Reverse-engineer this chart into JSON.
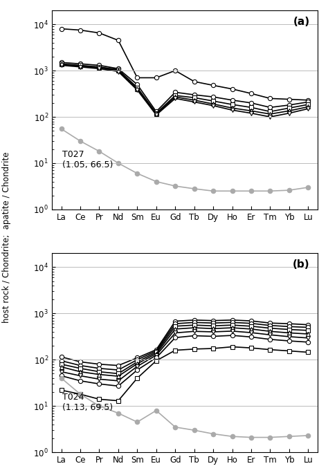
{
  "elements": [
    "La",
    "Ce",
    "Pr",
    "Nd",
    "Sm",
    "Eu",
    "Gd",
    "Tb",
    "Dy",
    "Ho",
    "Er",
    "Tm",
    "Yb",
    "Lu"
  ],
  "panel_a_label": "T027\n(1.05, 66.5)",
  "panel_b_label": "T024\n(1.13, 69.5)",
  "panel_a_tag": "(a)",
  "panel_b_tag": "(b)",
  "ylabel": "host rock / Chondrite;  apatite / Chondrite",
  "panel_a": {
    "lines": [
      [
        8000,
        7500,
        6500,
        4500,
        700,
        700,
        1000,
        580,
        480,
        400,
        320,
        250,
        240,
        230
      ],
      [
        1500,
        1400,
        1300,
        1100,
        500,
        130,
        340,
        300,
        270,
        230,
        200,
        160,
        180,
        210
      ],
      [
        1400,
        1300,
        1200,
        1050,
        430,
        120,
        290,
        260,
        220,
        185,
        160,
        130,
        155,
        185
      ],
      [
        1350,
        1250,
        1150,
        1000,
        400,
        115,
        270,
        230,
        190,
        155,
        135,
        115,
        135,
        165
      ],
      [
        1300,
        1200,
        1100,
        950,
        380,
        110,
        250,
        210,
        175,
        140,
        120,
        100,
        120,
        150
      ]
    ],
    "markers": [
      "o",
      "o",
      "s",
      "^",
      "v"
    ],
    "gray_line": [
      55,
      30,
      18,
      10,
      6,
      4.0,
      3.2,
      2.8,
      2.5,
      2.5,
      2.5,
      2.5,
      2.6,
      3.0
    ]
  },
  "panel_b": {
    "lines": [
      [
        115,
        90,
        80,
        75,
        110,
        165,
        680,
        720,
        700,
        720,
        690,
        620,
        600,
        570
      ],
      [
        95,
        75,
        65,
        60,
        100,
        155,
        600,
        640,
        620,
        640,
        610,
        550,
        520,
        500
      ],
      [
        80,
        65,
        55,
        50,
        90,
        145,
        530,
        560,
        540,
        560,
        530,
        480,
        450,
        430
      ],
      [
        70,
        55,
        48,
        44,
        82,
        135,
        460,
        490,
        470,
        490,
        460,
        410,
        380,
        360
      ],
      [
        55,
        45,
        38,
        35,
        72,
        125,
        380,
        410,
        400,
        415,
        385,
        345,
        315,
        295
      ],
      [
        45,
        35,
        30,
        27,
        60,
        110,
        300,
        330,
        320,
        335,
        310,
        275,
        255,
        240
      ],
      [
        22,
        18,
        14,
        13,
        40,
        95,
        160,
        170,
        175,
        190,
        180,
        165,
        155,
        145
      ]
    ],
    "markers": [
      "o",
      "o",
      "s",
      "^",
      "v",
      "o",
      "s"
    ],
    "gray_line": [
      40,
      18,
      10,
      7,
      4.5,
      8,
      3.5,
      3.0,
      2.5,
      2.2,
      2.1,
      2.1,
      2.2,
      2.3
    ]
  },
  "ylim": [
    1,
    20000
  ],
  "yticks": [
    1,
    10,
    100,
    1000,
    10000
  ],
  "black_color": "#000000",
  "gray_color": "#aaaaaa",
  "line_width": 1.2,
  "marker_size": 4.5
}
